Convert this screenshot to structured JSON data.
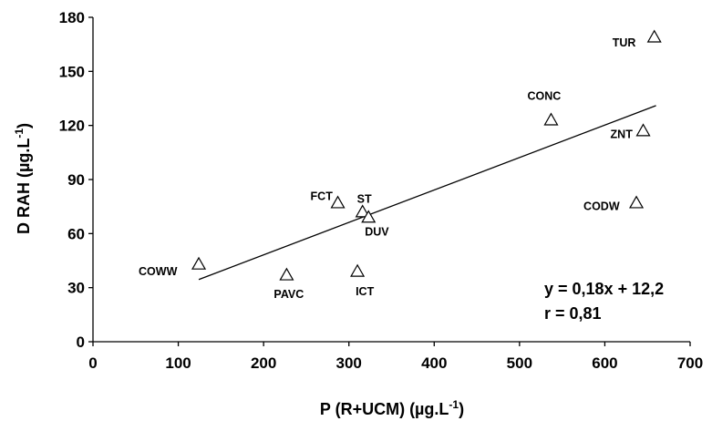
{
  "chart_data": {
    "type": "scatter",
    "title": "",
    "xlabel": "P (R+UCM) (µg.L",
    "xlabel_sup": "-1",
    "xlabel_end": ")",
    "ylabel": "D RAH (µg.L",
    "ylabel_sup": "-1",
    "ylabel_end": ")",
    "xlim": [
      0,
      700
    ],
    "ylim": [
      0,
      180
    ],
    "x_ticks": [
      0,
      100,
      200,
      300,
      400,
      500,
      600,
      700
    ],
    "y_ticks": [
      0,
      30,
      60,
      90,
      120,
      150,
      180
    ],
    "grid": false,
    "legend": "none",
    "marker": "open-triangle",
    "points": [
      {
        "label": "TUR",
        "x": 658,
        "y": 169
      },
      {
        "label": "CONC",
        "x": 537,
        "y": 123
      },
      {
        "label": "ZNT",
        "x": 645,
        "y": 117
      },
      {
        "label": "CODW",
        "x": 637,
        "y": 77
      },
      {
        "label": "FCT",
        "x": 287,
        "y": 77
      },
      {
        "label": "ST",
        "x": 316,
        "y": 72
      },
      {
        "label": "DUV",
        "x": 323,
        "y": 69
      },
      {
        "label": "COWW",
        "x": 124,
        "y": 43
      },
      {
        "label": "PAVC",
        "x": 227,
        "y": 37
      },
      {
        "label": "ICT",
        "x": 310,
        "y": 39
      }
    ],
    "trendline": {
      "slope": 0.18,
      "intercept": 12.2,
      "x_range": [
        124,
        660
      ]
    },
    "annotations": [
      "y = 0,18x + 12,2",
      "r = 0,81"
    ]
  }
}
